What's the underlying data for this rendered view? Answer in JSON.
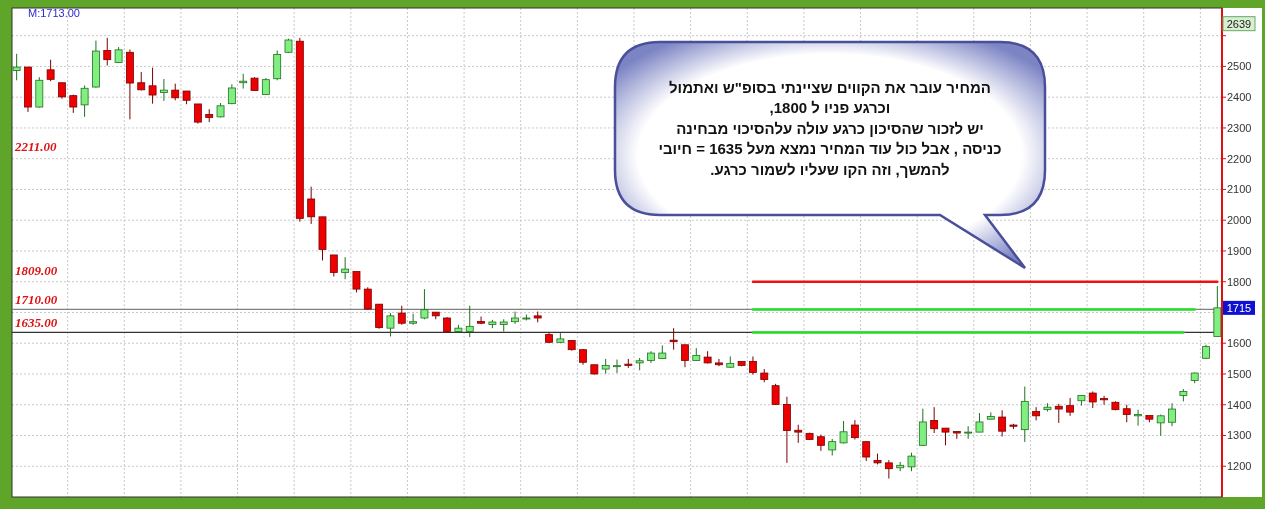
{
  "chart_data": {
    "type": "candlestick",
    "categories": [
      null,
      null,
      null,
      null,
      null,
      null,
      null,
      null,
      null,
      null,
      null,
      null,
      null,
      null,
      null,
      null,
      null,
      null,
      null,
      null,
      null,
      null,
      null,
      null,
      null,
      null,
      null,
      null,
      null,
      null,
      null,
      null,
      null,
      null,
      null,
      null,
      null,
      null,
      null,
      null,
      null,
      null,
      null,
      null,
      null,
      null,
      null,
      null,
      null,
      null,
      null,
      null,
      null,
      null,
      null,
      null,
      null,
      null,
      null,
      null,
      null,
      null,
      null,
      null,
      null,
      null,
      null,
      null,
      null,
      null,
      null,
      null,
      null,
      null,
      null,
      null,
      null,
      null,
      null,
      null,
      null,
      null,
      null,
      null,
      null,
      null,
      null,
      null,
      null,
      null,
      null,
      null,
      null,
      null,
      null,
      null,
      null,
      null,
      null,
      null,
      null,
      null,
      null,
      null,
      null,
      null,
      null
    ],
    "ohlc": [
      [
        2487,
        2541,
        2455,
        2498
      ],
      [
        2498,
        2498,
        2352,
        2368
      ],
      [
        2368,
        2465,
        2366,
        2455
      ],
      [
        2489,
        2522,
        2452,
        2458
      ],
      [
        2447,
        2447,
        2395,
        2401
      ],
      [
        2405,
        2408,
        2349,
        2368
      ],
      [
        2375,
        2438,
        2336,
        2429
      ],
      [
        2433,
        2584,
        2431,
        2550
      ],
      [
        2552,
        2593,
        2503,
        2522
      ],
      [
        2513,
        2563,
        2511,
        2554
      ],
      [
        2546,
        2555,
        2328,
        2446
      ],
      [
        2447,
        2482,
        2422,
        2424
      ],
      [
        2437,
        2496,
        2379,
        2407
      ],
      [
        2415,
        2459,
        2388,
        2423
      ],
      [
        2423,
        2444,
        2390,
        2398
      ],
      [
        2420,
        2420,
        2377,
        2390
      ],
      [
        2378,
        2378,
        2314,
        2319
      ],
      [
        2344,
        2361,
        2319,
        2334
      ],
      [
        2336,
        2381,
        2334,
        2372
      ],
      [
        2379,
        2442,
        2377,
        2430
      ],
      [
        2447,
        2476,
        2428,
        2452
      ],
      [
        2462,
        2465,
        2420,
        2422
      ],
      [
        2409,
        2462,
        2407,
        2457
      ],
      [
        2460,
        2552,
        2455,
        2539
      ],
      [
        2546,
        2590,
        2544,
        2586
      ],
      [
        2582,
        2593,
        1995,
        2006
      ],
      [
        2069,
        2109,
        1988,
        2011
      ],
      [
        2011,
        2011,
        1869,
        1905
      ],
      [
        1887,
        1887,
        1817,
        1830
      ],
      [
        1830,
        1880,
        1808,
        1841
      ],
      [
        1833,
        1833,
        1765,
        1776
      ],
      [
        1776,
        1782,
        1709,
        1711
      ],
      [
        1727,
        1727,
        1647,
        1651
      ],
      [
        1649,
        1698,
        1622,
        1689
      ],
      [
        1698,
        1722,
        1660,
        1665
      ],
      [
        1665,
        1696,
        1660,
        1670
      ],
      [
        1682,
        1776,
        1678,
        1709
      ],
      [
        1701,
        1701,
        1678,
        1689
      ],
      [
        1682,
        1685,
        1636,
        1638
      ],
      [
        1638,
        1660,
        1635,
        1649
      ],
      [
        1638,
        1722,
        1620,
        1655
      ],
      [
        1671,
        1687,
        1662,
        1665
      ],
      [
        1661,
        1676,
        1649,
        1669
      ],
      [
        1661,
        1678,
        1638,
        1669
      ],
      [
        1670,
        1703,
        1663,
        1682
      ],
      [
        1682,
        1693,
        1674,
        1682
      ],
      [
        1689,
        1703,
        1668,
        1682
      ],
      [
        1628,
        1633,
        1601,
        1603
      ],
      [
        1603,
        1633,
        1601,
        1614
      ],
      [
        1609,
        1609,
        1576,
        1579
      ],
      [
        1579,
        1581,
        1530,
        1538
      ],
      [
        1530,
        1530,
        1498,
        1500
      ],
      [
        1516,
        1549,
        1501,
        1528
      ],
      [
        1527,
        1547,
        1503,
        1527
      ],
      [
        1532,
        1549,
        1520,
        1528
      ],
      [
        1536,
        1552,
        1512,
        1543
      ],
      [
        1544,
        1574,
        1536,
        1568
      ],
      [
        1550,
        1593,
        1549,
        1568
      ],
      [
        1610,
        1649,
        1579,
        1605
      ],
      [
        1595,
        1595,
        1522,
        1544
      ],
      [
        1544,
        1584,
        1543,
        1560
      ],
      [
        1555,
        1574,
        1534,
        1536
      ],
      [
        1536,
        1549,
        1525,
        1530
      ],
      [
        1522,
        1557,
        1520,
        1534
      ],
      [
        1541,
        1541,
        1525,
        1528
      ],
      [
        1541,
        1557,
        1498,
        1505
      ],
      [
        1503,
        1516,
        1473,
        1482
      ],
      [
        1462,
        1468,
        1399,
        1401
      ],
      [
        1401,
        1426,
        1211,
        1316
      ],
      [
        1317,
        1335,
        1276,
        1311
      ],
      [
        1307,
        1309,
        1285,
        1287
      ],
      [
        1296,
        1303,
        1250,
        1268
      ],
      [
        1253,
        1289,
        1235,
        1280
      ],
      [
        1276,
        1347,
        1274,
        1312
      ],
      [
        1334,
        1350,
        1287,
        1293
      ],
      [
        1280,
        1280,
        1217,
        1230
      ],
      [
        1219,
        1241,
        1206,
        1211
      ],
      [
        1211,
        1220,
        1160,
        1192
      ],
      [
        1195,
        1214,
        1184,
        1203
      ],
      [
        1198,
        1244,
        1184,
        1233
      ],
      [
        1268,
        1387,
        1266,
        1344
      ],
      [
        1349,
        1392,
        1308,
        1322
      ],
      [
        1324,
        1324,
        1268,
        1311
      ],
      [
        1313,
        1314,
        1289,
        1308
      ],
      [
        1308,
        1330,
        1289,
        1311
      ],
      [
        1311,
        1373,
        1311,
        1344
      ],
      [
        1353,
        1375,
        1353,
        1362
      ],
      [
        1360,
        1382,
        1297,
        1314
      ],
      [
        1334,
        1338,
        1321,
        1330
      ],
      [
        1319,
        1459,
        1279,
        1411
      ],
      [
        1378,
        1392,
        1349,
        1364
      ],
      [
        1384,
        1405,
        1378,
        1392
      ],
      [
        1395,
        1403,
        1341,
        1386
      ],
      [
        1397,
        1422,
        1364,
        1376
      ],
      [
        1413,
        1430,
        1397,
        1430
      ],
      [
        1438,
        1443,
        1389,
        1409
      ],
      [
        1420,
        1429,
        1400,
        1416
      ],
      [
        1408,
        1411,
        1382,
        1384
      ],
      [
        1387,
        1400,
        1343,
        1368
      ],
      [
        1364,
        1384,
        1332,
        1368
      ],
      [
        1365,
        1365,
        1343,
        1353
      ],
      [
        1341,
        1368,
        1299,
        1364
      ],
      [
        1343,
        1405,
        1330,
        1386
      ],
      [
        1430,
        1451,
        1411,
        1443
      ],
      [
        1479,
        1505,
        1470,
        1503
      ],
      [
        1551,
        1595,
        1549,
        1589
      ],
      [
        1622,
        1786,
        1622,
        1715
      ]
    ],
    "series": [
      {
        "type": "line",
        "color": "#ee1111",
        "values": [
          null,
          null,
          null,
          null,
          null,
          null,
          null,
          null,
          null,
          null,
          null,
          null,
          null,
          null,
          null,
          null,
          null,
          null,
          null,
          null,
          null,
          null,
          null,
          null,
          null,
          null,
          null,
          null,
          null,
          null,
          null,
          null,
          null,
          null,
          null,
          null,
          null,
          null,
          null,
          null,
          null,
          null,
          null,
          null,
          null,
          null,
          null,
          null,
          null,
          null,
          null,
          null,
          null,
          null,
          null,
          null,
          null,
          null,
          null,
          null,
          null,
          null,
          null,
          null,
          null,
          1800,
          1800,
          1800,
          1800,
          1800,
          1800,
          1800,
          1800,
          1800,
          1800,
          1800,
          1800,
          1800,
          1800,
          1800,
          1800,
          1800,
          1800,
          1800,
          1800,
          1800,
          1800,
          1800,
          1800,
          1800,
          1800,
          1800,
          1800,
          1800,
          1800,
          1800,
          1800,
          1800,
          1800,
          1800,
          1800,
          1800,
          1800,
          1800,
          1800,
          1800,
          1800
        ]
      },
      {
        "type": "line",
        "color": "#22dd22",
        "values": [
          null,
          null,
          null,
          null,
          null,
          null,
          null,
          null,
          null,
          null,
          null,
          null,
          null,
          null,
          null,
          null,
          null,
          null,
          null,
          null,
          null,
          null,
          null,
          null,
          null,
          null,
          null,
          null,
          null,
          null,
          null,
          null,
          null,
          null,
          null,
          null,
          null,
          null,
          null,
          null,
          null,
          null,
          null,
          null,
          null,
          null,
          null,
          null,
          null,
          null,
          null,
          null,
          null,
          null,
          null,
          null,
          null,
          null,
          null,
          null,
          null,
          null,
          null,
          null,
          null,
          1710,
          1710,
          1710,
          1710,
          1710,
          1710,
          1710,
          1710,
          1710,
          1710,
          1710,
          1710,
          1710,
          1710,
          1710,
          1710,
          1710,
          1710,
          1710,
          1710,
          1710,
          1710,
          1710,
          1710,
          1710,
          1710,
          1710,
          1710,
          1710,
          1710,
          1710,
          1710,
          1710,
          1710,
          1710,
          1710,
          1710,
          1710,
          1710,
          1710,
          null,
          null
        ]
      },
      {
        "type": "line",
        "color": "#22dd22",
        "values": [
          null,
          null,
          null,
          null,
          null,
          null,
          null,
          null,
          null,
          null,
          null,
          null,
          null,
          null,
          null,
          null,
          null,
          null,
          null,
          null,
          null,
          null,
          null,
          null,
          null,
          null,
          null,
          null,
          null,
          null,
          null,
          null,
          null,
          null,
          null,
          null,
          null,
          null,
          null,
          null,
          null,
          null,
          null,
          null,
          null,
          null,
          null,
          null,
          null,
          null,
          null,
          null,
          null,
          null,
          null,
          null,
          null,
          null,
          null,
          null,
          null,
          null,
          null,
          null,
          null,
          1635,
          1635,
          1635,
          1635,
          1635,
          1635,
          1635,
          1635,
          1635,
          1635,
          1635,
          1635,
          1635,
          1635,
          1635,
          1635,
          1635,
          1635,
          1635,
          1635,
          1635,
          1635,
          1635,
          1635,
          1635,
          1635,
          1635,
          1635,
          1635,
          1635,
          1635,
          1635,
          1635,
          1635,
          1635,
          1635,
          1635,
          1635,
          1635,
          null,
          null,
          null
        ]
      }
    ],
    "ylim": [
      1100,
      2690
    ],
    "yticks": [
      1200,
      1300,
      1400,
      1500,
      1600,
      {
        "value": 1700,
        "label": null
      },
      1800,
      1900,
      2000,
      2100,
      2200,
      2300,
      2400,
      2500,
      {
        "value": 2600,
        "label": null
      },
      {
        "value": 2639,
        "label": "2639"
      }
    ],
    "grid": true,
    "ref_lines": [
      {
        "axis": "y",
        "value": 1710,
        "label": "1710.00",
        "color": "#808080"
      },
      {
        "axis": "y",
        "value": 1635,
        "label": "1635.00",
        "color": "#333333"
      }
    ],
    "annotations": [
      "M:1713.00",
      "2211.00",
      "1809.00",
      "המחיר עובר את  הקווים שציינתי בסופ\"ש  ואתמול\nוכרגע פניו ל 1800,\nיש לזכור  שהסיכון כרגע   עולה עלהסיכוי   מבחינה\nכניסה , אבל כול עוד המחיר נמצא  מעל 1635 = חיובי\nלהמשך, וזה הקו  שעליו לשמור כרגע.",
      "1715"
    ]
  }
}
